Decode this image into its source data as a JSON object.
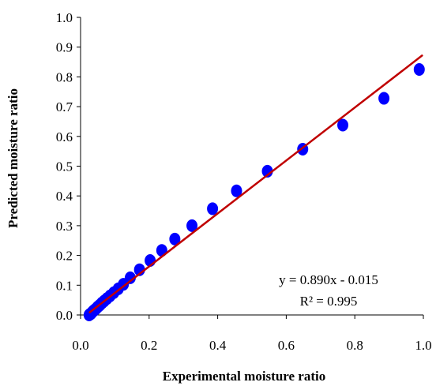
{
  "chart_data": {
    "type": "scatter",
    "xlabel": "Experimental moisture ratio",
    "ylabel": "Predicted moisture ratio",
    "xlim": [
      0.0,
      1.0
    ],
    "ylim": [
      0.0,
      1.0
    ],
    "x_ticks": [
      "0.0",
      "0.2",
      "0.4",
      "0.6",
      "0.8",
      "1.0"
    ],
    "y_ticks": [
      "0.0",
      "0.1",
      "0.2",
      "0.3",
      "0.4",
      "0.5",
      "0.6",
      "0.7",
      "0.8",
      "0.9",
      "1.0"
    ],
    "grid": false,
    "point_color": "#0000ff",
    "trendline_color": "#c00000",
    "points": [
      {
        "x": 0.025,
        "y": 0.0
      },
      {
        "x": 0.027,
        "y": 0.002
      },
      {
        "x": 0.03,
        "y": 0.004
      },
      {
        "x": 0.033,
        "y": 0.008
      },
      {
        "x": 0.036,
        "y": 0.012
      },
      {
        "x": 0.04,
        "y": 0.016
      },
      {
        "x": 0.045,
        "y": 0.021
      },
      {
        "x": 0.05,
        "y": 0.027
      },
      {
        "x": 0.056,
        "y": 0.033
      },
      {
        "x": 0.062,
        "y": 0.04
      },
      {
        "x": 0.069,
        "y": 0.047
      },
      {
        "x": 0.077,
        "y": 0.055
      },
      {
        "x": 0.086,
        "y": 0.064
      },
      {
        "x": 0.097,
        "y": 0.075
      },
      {
        "x": 0.11,
        "y": 0.088
      },
      {
        "x": 0.125,
        "y": 0.103
      },
      {
        "x": 0.145,
        "y": 0.125
      },
      {
        "x": 0.172,
        "y": 0.152
      },
      {
        "x": 0.203,
        "y": 0.183
      },
      {
        "x": 0.237,
        "y": 0.217
      },
      {
        "x": 0.275,
        "y": 0.255
      },
      {
        "x": 0.325,
        "y": 0.3
      },
      {
        "x": 0.385,
        "y": 0.357
      },
      {
        "x": 0.455,
        "y": 0.417
      },
      {
        "x": 0.545,
        "y": 0.483
      },
      {
        "x": 0.648,
        "y": 0.557
      },
      {
        "x": 0.765,
        "y": 0.638
      },
      {
        "x": 0.885,
        "y": 0.728
      },
      {
        "x": 0.988,
        "y": 0.825
      }
    ],
    "trendline": {
      "slope": 0.89,
      "intercept": -0.015,
      "x_range": [
        0.025,
        0.998
      ],
      "equation": "y = 0.890x - 0.015",
      "r2": "R² = 0.995"
    }
  }
}
